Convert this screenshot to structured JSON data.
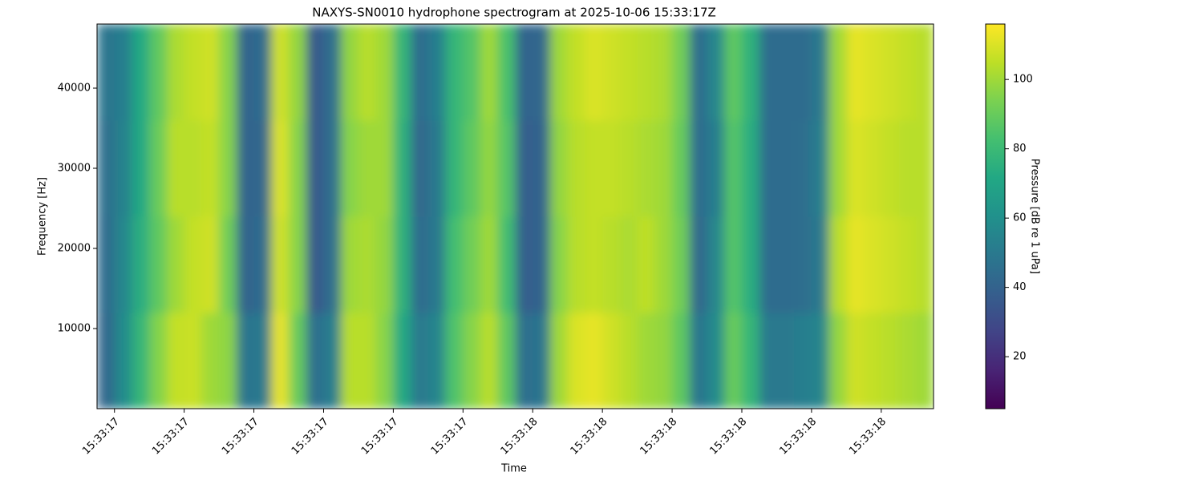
{
  "chart_data": {
    "type": "heatmap",
    "title": "NAXYS-SN0010 hydrophone spectrogram at 2025-10-06 15:33:17Z",
    "xlabel": "Time",
    "ylabel": "Frequency [Hz]",
    "colorbar_label": "Pressure [dB re 1 uPa]",
    "colormap": "viridis",
    "x_edges": [
      17.375,
      17.4,
      17.425,
      17.45,
      17.475,
      17.5,
      17.525,
      17.55,
      17.575,
      17.6,
      17.625,
      17.65,
      17.675,
      17.7,
      17.725,
      17.75,
      17.775,
      17.8,
      17.825,
      17.85,
      17.875,
      17.9,
      17.925,
      17.95,
      17.975,
      18.0,
      18.025,
      18.05,
      18.075,
      18.1,
      18.125,
      18.15,
      18.175,
      18.2,
      18.225,
      18.25,
      18.275,
      18.3,
      18.325,
      18.35,
      18.375,
      18.4,
      18.425,
      18.45,
      18.475,
      18.5,
      18.525,
      18.55,
      18.575
    ],
    "y_edges": [
      0,
      12000,
      24000,
      36000,
      48000
    ],
    "z": [
      [
        42,
        58,
        78,
        95,
        106,
        107,
        100,
        97,
        48,
        50,
        112,
        90,
        45,
        52,
        104,
        104,
        96,
        72,
        50,
        55,
        85,
        96,
        104,
        88,
        45,
        48,
        100,
        110,
        112,
        108,
        104,
        100,
        98,
        88,
        48,
        58,
        90,
        78,
        50,
        50,
        52,
        55,
        98,
        108,
        106,
        104,
        102,
        100
      ],
      [
        44,
        56,
        74,
        88,
        100,
        106,
        108,
        92,
        40,
        44,
        108,
        96,
        36,
        46,
        100,
        102,
        98,
        76,
        44,
        50,
        82,
        92,
        100,
        82,
        38,
        40,
        96,
        104,
        106,
        104,
        102,
        105,
        100,
        92,
        42,
        56,
        86,
        74,
        44,
        44,
        45,
        50,
        104,
        112,
        110,
        108,
        106,
        104
      ],
      [
        46,
        54,
        72,
        90,
        104,
        104,
        106,
        96,
        40,
        42,
        110,
        96,
        36,
        46,
        96,
        100,
        100,
        76,
        42,
        50,
        78,
        88,
        98,
        86,
        38,
        40,
        98,
        104,
        106,
        106,
        104,
        102,
        100,
        90,
        44,
        52,
        86,
        74,
        44,
        44,
        45,
        52,
        100,
        110,
        108,
        106,
        104,
        104
      ],
      [
        48,
        52,
        72,
        88,
        102,
        106,
        108,
        96,
        40,
        44,
        108,
        98,
        36,
        46,
        98,
        104,
        100,
        78,
        44,
        52,
        78,
        86,
        100,
        84,
        40,
        42,
        100,
        106,
        110,
        108,
        106,
        104,
        102,
        92,
        44,
        56,
        88,
        76,
        44,
        44,
        44,
        50,
        100,
        112,
        110,
        108,
        106,
        104
      ]
    ],
    "xlim": [
      17.375,
      18.575
    ],
    "ylim": [
      0,
      48000
    ],
    "xticks": [
      {
        "value": 17.4,
        "label": "15:33:17"
      },
      {
        "value": 17.5,
        "label": "15:33:17"
      },
      {
        "value": 17.6,
        "label": "15:33:17"
      },
      {
        "value": 17.7,
        "label": "15:33:17"
      },
      {
        "value": 17.8,
        "label": "15:33:17"
      },
      {
        "value": 17.9,
        "label": "15:33:17"
      },
      {
        "value": 18.0,
        "label": "15:33:18"
      },
      {
        "value": 18.1,
        "label": "15:33:18"
      },
      {
        "value": 18.2,
        "label": "15:33:18"
      },
      {
        "value": 18.3,
        "label": "15:33:18"
      },
      {
        "value": 18.4,
        "label": "15:33:18"
      },
      {
        "value": 18.5,
        "label": "15:33:18"
      }
    ],
    "yticks": [
      10000,
      20000,
      30000,
      40000
    ],
    "clim": [
      5,
      116
    ],
    "cticks": [
      20,
      40,
      60,
      80,
      100
    ]
  }
}
